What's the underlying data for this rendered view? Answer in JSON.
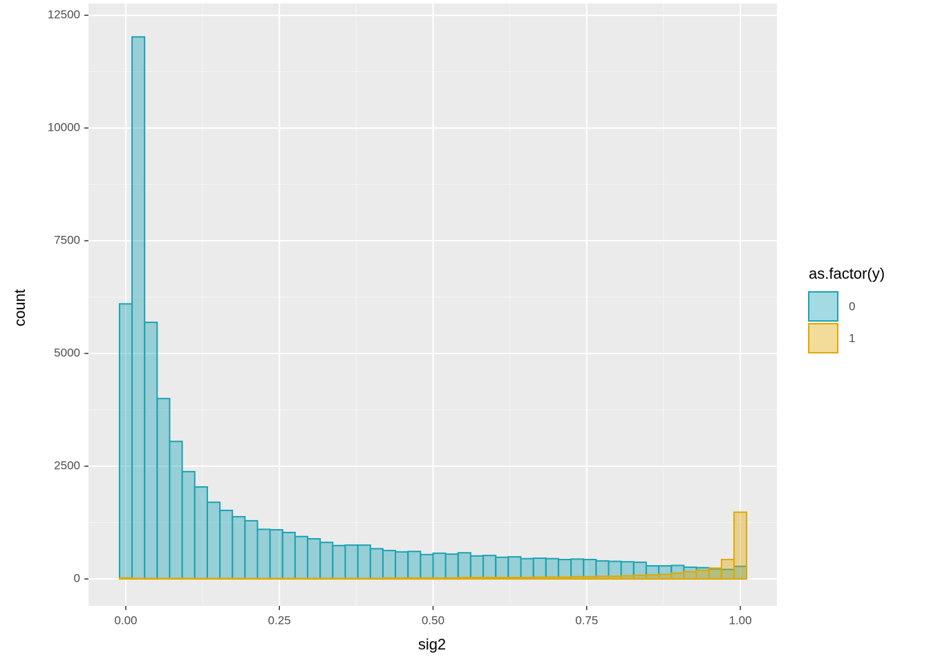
{
  "chart_data": {
    "type": "histogram",
    "x_label": "sig2",
    "y_label": "count",
    "legend_title": "as.factor(y)",
    "legend_position": "right",
    "bins": [
      -0.0102,
      0.0102,
      0.0306,
      0.051,
      0.0714,
      0.0918,
      0.1122,
      0.1327,
      0.1531,
      0.1735,
      0.1939,
      0.2143,
      0.2347,
      0.2551,
      0.2755,
      0.2959,
      0.3163,
      0.3367,
      0.3571,
      0.3776,
      0.398,
      0.4184,
      0.4388,
      0.4592,
      0.4796,
      0.5,
      0.5204,
      0.5408,
      0.5612,
      0.5816,
      0.602,
      0.6224,
      0.6429,
      0.6633,
      0.6837,
      0.7041,
      0.7245,
      0.7449,
      0.7653,
      0.7857,
      0.8061,
      0.8265,
      0.8469,
      0.8673,
      0.8878,
      0.9082,
      0.9286,
      0.949,
      0.9694,
      0.9898,
      1.0102
    ],
    "series": [
      {
        "name": "0",
        "color": "#1ba3b3",
        "values": [
          6100,
          12020,
          5690,
          4000,
          3050,
          2380,
          2040,
          1700,
          1520,
          1380,
          1290,
          1100,
          1090,
          1030,
          940,
          890,
          810,
          740,
          750,
          750,
          670,
          630,
          600,
          610,
          540,
          570,
          550,
          580,
          510,
          520,
          480,
          490,
          450,
          460,
          450,
          430,
          440,
          430,
          400,
          390,
          380,
          370,
          290,
          290,
          300,
          260,
          250,
          220,
          210,
          280
        ]
      },
      {
        "name": "1",
        "color": "#e0a800",
        "values": [
          20,
          10,
          10,
          10,
          10,
          10,
          10,
          10,
          10,
          10,
          10,
          10,
          10,
          10,
          10,
          10,
          10,
          10,
          10,
          10,
          10,
          20,
          20,
          20,
          20,
          20,
          20,
          30,
          30,
          30,
          30,
          30,
          30,
          40,
          40,
          40,
          50,
          50,
          60,
          60,
          70,
          80,
          90,
          100,
          130,
          160,
          190,
          240,
          430,
          1480
        ]
      }
    ],
    "xlim": [
      -0.0607,
      1.0596
    ],
    "ylim": [
      -598,
      12762
    ],
    "xticks": [
      {
        "value": 0,
        "label": "0.00"
      },
      {
        "value": 0.25,
        "label": "0.25"
      },
      {
        "value": 0.5,
        "label": "0.50"
      },
      {
        "value": 0.75,
        "label": "0.75"
      },
      {
        "value": 1,
        "label": "1.00"
      }
    ],
    "yticks": [
      0,
      2500,
      5000,
      7500,
      10000,
      12500
    ],
    "grid": true
  }
}
